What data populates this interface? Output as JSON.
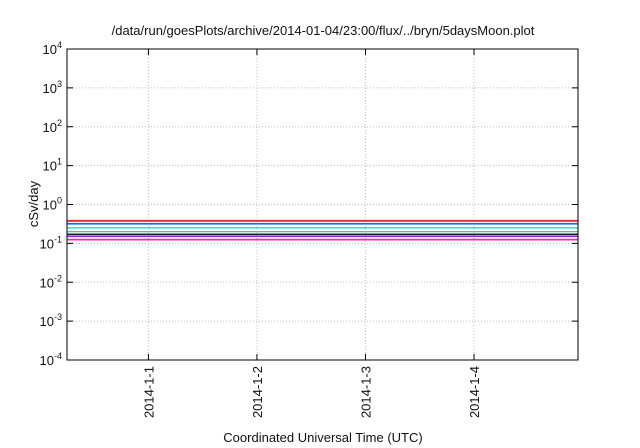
{
  "chart_data": {
    "type": "line",
    "title": "/data/run/goesPlots/archive/2014-01-04/23:00/flux/../bryn/5daysMoon.plot",
    "xlabel": "Coordinated Universal Time (UTC)",
    "ylabel": "cSv/day",
    "yscale": "log",
    "ylim": [
      0.0001,
      10000
    ],
    "y_ticks": [
      {
        "base": "10",
        "exp": "-4"
      },
      {
        "base": "10",
        "exp": "-3"
      },
      {
        "base": "10",
        "exp": "-2"
      },
      {
        "base": "10",
        "exp": "-1"
      },
      {
        "base": "10",
        "exp": "0"
      },
      {
        "base": "10",
        "exp": "1"
      },
      {
        "base": "10",
        "exp": "2"
      },
      {
        "base": "10",
        "exp": "3"
      },
      {
        "base": "10",
        "exp": "4"
      }
    ],
    "xlim": [
      "2013-12-31 06:00",
      "2014-01-04 23:00"
    ],
    "x_ticks": [
      "2014-1-1",
      "2014-1-2",
      "2014-1-3",
      "2014-1-4"
    ],
    "grid": true,
    "legend": "none",
    "series": [
      {
        "color": "#e8232a",
        "level": 0.38,
        "width": 1.8
      },
      {
        "color": "#1f6fd8",
        "level": 0.32,
        "width": 1.8
      },
      {
        "color": "#19c8d6",
        "level": 0.25,
        "width": 1.2
      },
      {
        "color": "#3fbf6f",
        "level": 0.2,
        "width": 1.2
      },
      {
        "color": "#222222",
        "level": 0.17,
        "width": 1.8
      },
      {
        "color": "#9b2bd6",
        "level": 0.15,
        "width": 1.2
      },
      {
        "color": "#ff1fbf",
        "level": 0.125,
        "width": 1.8
      }
    ]
  }
}
